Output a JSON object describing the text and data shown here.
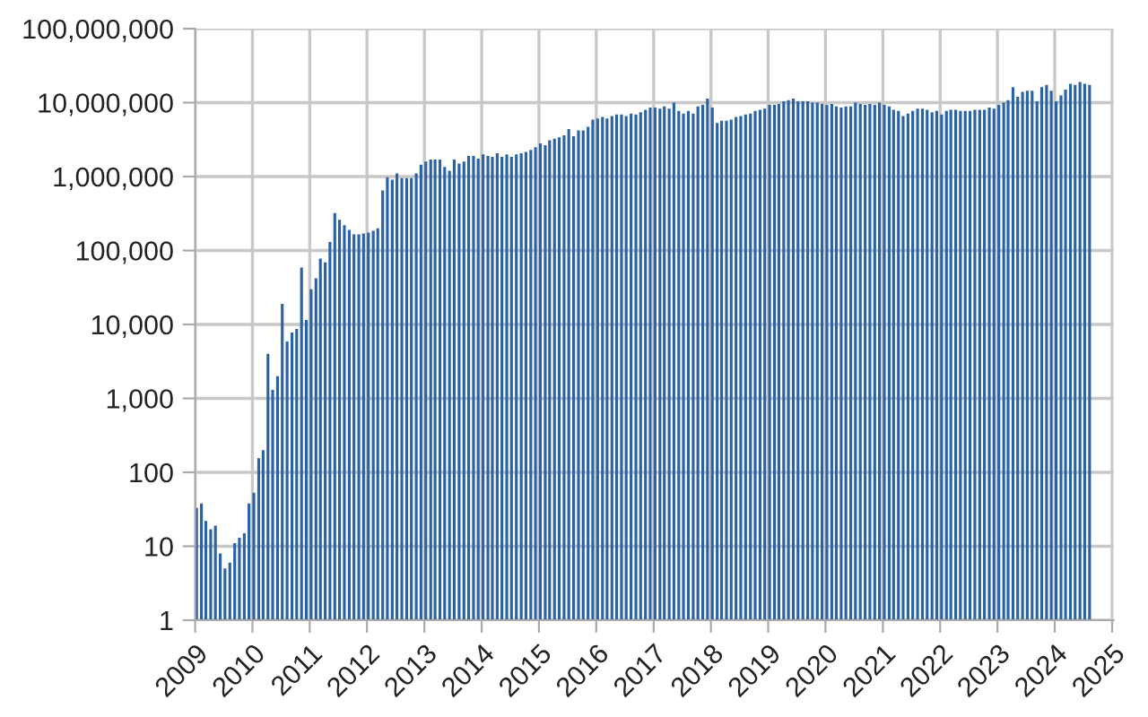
{
  "chart_data": {
    "type": "bar",
    "color": "#2a62a6",
    "x": [
      "2009-01",
      "2009-02",
      "2009-03",
      "2009-04",
      "2009-05",
      "2009-06",
      "2009-07",
      "2009-08",
      "2009-09",
      "2009-10",
      "2009-11",
      "2009-12",
      "2010-01",
      "2010-02",
      "2010-03",
      "2010-04",
      "2010-05",
      "2010-06",
      "2010-07",
      "2010-08",
      "2010-09",
      "2010-10",
      "2010-11",
      "2010-12",
      "2011-01",
      "2011-02",
      "2011-03",
      "2011-04",
      "2011-05",
      "2011-06",
      "2011-07",
      "2011-08",
      "2011-09",
      "2011-10",
      "2011-11",
      "2011-12",
      "2012-01",
      "2012-02",
      "2012-03",
      "2012-04",
      "2012-05",
      "2012-06",
      "2012-07",
      "2012-08",
      "2012-09",
      "2012-10",
      "2012-11",
      "2012-12",
      "2013-01",
      "2013-02",
      "2013-03",
      "2013-04",
      "2013-05",
      "2013-06",
      "2013-07",
      "2013-08",
      "2013-09",
      "2013-10",
      "2013-11",
      "2013-12",
      "2014-01",
      "2014-02",
      "2014-03",
      "2014-04",
      "2014-05",
      "2014-06",
      "2014-07",
      "2014-08",
      "2014-09",
      "2014-10",
      "2014-11",
      "2014-12",
      "2015-01",
      "2015-02",
      "2015-03",
      "2015-04",
      "2015-05",
      "2015-06",
      "2015-07",
      "2015-08",
      "2015-09",
      "2015-10",
      "2015-11",
      "2015-12",
      "2016-01",
      "2016-02",
      "2016-03",
      "2016-04",
      "2016-05",
      "2016-06",
      "2016-07",
      "2016-08",
      "2016-09",
      "2016-10",
      "2016-11",
      "2016-12",
      "2017-01",
      "2017-02",
      "2017-03",
      "2017-04",
      "2017-05",
      "2017-06",
      "2017-07",
      "2017-08",
      "2017-09",
      "2017-10",
      "2017-11",
      "2017-12",
      "2018-01",
      "2018-02",
      "2018-03",
      "2018-04",
      "2018-05",
      "2018-06",
      "2018-07",
      "2018-08",
      "2018-09",
      "2018-10",
      "2018-11",
      "2018-12",
      "2019-01",
      "2019-02",
      "2019-03",
      "2019-04",
      "2019-05",
      "2019-06",
      "2019-07",
      "2019-08",
      "2019-09",
      "2019-10",
      "2019-11",
      "2019-12",
      "2020-01",
      "2020-02",
      "2020-03",
      "2020-04",
      "2020-05",
      "2020-06",
      "2020-07",
      "2020-08",
      "2020-09",
      "2020-10",
      "2020-11",
      "2020-12",
      "2021-01",
      "2021-02",
      "2021-03",
      "2021-04",
      "2021-05",
      "2021-06",
      "2021-07",
      "2021-08",
      "2021-09",
      "2021-10",
      "2021-11",
      "2021-12",
      "2022-01",
      "2022-02",
      "2022-03",
      "2022-04",
      "2022-05",
      "2022-06",
      "2022-07",
      "2022-08",
      "2022-09",
      "2022-10",
      "2022-11",
      "2022-12",
      "2023-01",
      "2023-02",
      "2023-03",
      "2023-04",
      "2023-05",
      "2023-06",
      "2023-07",
      "2023-08",
      "2023-09",
      "2023-10",
      "2023-11",
      "2023-12",
      "2024-01",
      "2024-02",
      "2024-03",
      "2024-04",
      "2024-05",
      "2024-06",
      "2024-07",
      "2024-08"
    ],
    "values": [
      33,
      38,
      22,
      17,
      19,
      8,
      5,
      6,
      11,
      13,
      15,
      38,
      53,
      155,
      200,
      4000,
      1300,
      2000,
      19000,
      5900,
      7800,
      8700,
      59000,
      11500,
      30000,
      42000,
      78000,
      69000,
      130000,
      320000,
      260000,
      220000,
      190000,
      165000,
      165000,
      170000,
      175000,
      185000,
      200000,
      650000,
      980000,
      910000,
      1100000,
      950000,
      950000,
      950000,
      1100000,
      1450000,
      1600000,
      1700000,
      1700000,
      1700000,
      1350000,
      1200000,
      1700000,
      1500000,
      1600000,
      1900000,
      1900000,
      1750000,
      2000000,
      1900000,
      1850000,
      2070000,
      1850000,
      2000000,
      1850000,
      2000000,
      2070000,
      2150000,
      2300000,
      2500000,
      2800000,
      2650000,
      3100000,
      3250000,
      3400000,
      3600000,
      4400000,
      3500000,
      4200000,
      4200000,
      4700000,
      5900000,
      6100000,
      6400000,
      6100000,
      6600000,
      6900000,
      6900000,
      6600000,
      7100000,
      6900000,
      7400000,
      8000000,
      8600000,
      8600000,
      8300000,
      8900000,
      8300000,
      10000000,
      7700000,
      7100000,
      7700000,
      7100000,
      8900000,
      9300000,
      11300000,
      8600000,
      5300000,
      5700000,
      5700000,
      5900000,
      6400000,
      6600000,
      6900000,
      7100000,
      7700000,
      8000000,
      8300000,
      9300000,
      9300000,
      9600000,
      10400000,
      10800000,
      11300000,
      10400000,
      10400000,
      10400000,
      10000000,
      10000000,
      9600000,
      9300000,
      9600000,
      8900000,
      8600000,
      8900000,
      8900000,
      10000000,
      9600000,
      9300000,
      9600000,
      9300000,
      10000000,
      9300000,
      8900000,
      8000000,
      7700000,
      6600000,
      7100000,
      7700000,
      8300000,
      8300000,
      8000000,
      7400000,
      7700000,
      6900000,
      7700000,
      8000000,
      8000000,
      7700000,
      7700000,
      7700000,
      8000000,
      8000000,
      8000000,
      8600000,
      8300000,
      9300000,
      10000000,
      10800000,
      16200000,
      12000000,
      14000000,
      14500000,
      14500000,
      10400000,
      16200000,
      17400000,
      14500000,
      10400000,
      12500000,
      15000000,
      18000000,
      17400000,
      19000000,
      18000000,
      17400000
    ],
    "log": "y",
    "grid": true,
    "xlim": [
      "2009-01-01",
      "2025-01-10"
    ],
    "xticks": [
      "2009",
      "2010",
      "2011",
      "2012",
      "2013",
      "2014",
      "2015",
      "2016",
      "2017",
      "2018",
      "2019",
      "2020",
      "2021",
      "2022",
      "2023",
      "2024",
      "2025"
    ],
    "ylim": [
      1,
      100000000
    ],
    "yticks": [
      1,
      10,
      {
        "value": 100,
        "label": "100"
      },
      {
        "value": 1000,
        "label": "1,000"
      },
      {
        "value": 10000,
        "label": "10,000"
      },
      {
        "value": 100000,
        "label": "100,000"
      },
      {
        "value": 1000000,
        "label": "1,000,000"
      },
      {
        "value": 10000000,
        "label": "10,000,000"
      },
      {
        "value": 100000000,
        "label": "100,000,000"
      }
    ]
  }
}
